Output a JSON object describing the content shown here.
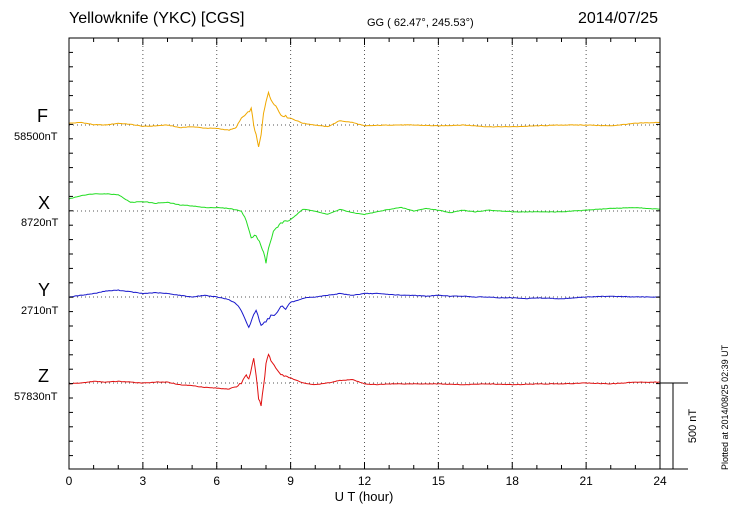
{
  "header": {
    "station": "Yellowknife (YKC)  [CGS]",
    "coords": "GG ( 62.47°, 245.53°)",
    "date": "2014/07/25"
  },
  "plotted_note": "Plotted at 2014/08/25 02:39 UT",
  "chart_data": {
    "type": "line",
    "xlabel": "U T (hour)",
    "xlim": [
      0,
      24
    ],
    "x_ticks": [
      "0",
      "3",
      "6",
      "9",
      "12",
      "15",
      "18",
      "21",
      "24"
    ],
    "scale_bar_label": "500 nT",
    "scale_bar_nT": 500,
    "series": [
      {
        "name": "F",
        "baseline": "58500nT",
        "color": "#f0a800",
        "points": [
          [
            0,
            10
          ],
          [
            0.5,
            15
          ],
          [
            1,
            2
          ],
          [
            1.5,
            0
          ],
          [
            2,
            10
          ],
          [
            2.5,
            4
          ],
          [
            3,
            -8
          ],
          [
            3.5,
            -5
          ],
          [
            4,
            0
          ],
          [
            4.5,
            -15
          ],
          [
            5,
            -10
          ],
          [
            5.5,
            -18
          ],
          [
            6,
            -20
          ],
          [
            6.5,
            -30
          ],
          [
            6.8,
            -15
          ],
          [
            7,
            40
          ],
          [
            7.2,
            60
          ],
          [
            7.4,
            95
          ],
          [
            7.5,
            0
          ],
          [
            7.6,
            -60
          ],
          [
            7.7,
            -130
          ],
          [
            7.8,
            -60
          ],
          [
            7.9,
            70
          ],
          [
            8,
            140
          ],
          [
            8.1,
            185
          ],
          [
            8.2,
            150
          ],
          [
            8.4,
            110
          ],
          [
            8.6,
            60
          ],
          [
            9,
            40
          ],
          [
            9.5,
            10
          ],
          [
            10,
            0
          ],
          [
            10.5,
            -10
          ],
          [
            11,
            25
          ],
          [
            11.5,
            15
          ],
          [
            12,
            -5
          ],
          [
            13,
            0
          ],
          [
            14,
            0
          ],
          [
            15,
            -5
          ],
          [
            16,
            0
          ],
          [
            17,
            -10
          ],
          [
            18,
            -10
          ],
          [
            19,
            -5
          ],
          [
            20,
            0
          ],
          [
            21,
            0
          ],
          [
            22,
            -5
          ],
          [
            23,
            10
          ],
          [
            24,
            15
          ]
        ]
      },
      {
        "name": "X",
        "baseline": "8720nT",
        "color": "#22dd22",
        "points": [
          [
            0,
            70
          ],
          [
            0.5,
            90
          ],
          [
            1,
            100
          ],
          [
            1.5,
            100
          ],
          [
            2,
            95
          ],
          [
            2.5,
            50
          ],
          [
            3,
            55
          ],
          [
            3.5,
            45
          ],
          [
            4,
            50
          ],
          [
            4.5,
            35
          ],
          [
            5,
            30
          ],
          [
            5.5,
            20
          ],
          [
            6,
            20
          ],
          [
            6.5,
            15
          ],
          [
            7,
            0
          ],
          [
            7.2,
            -60
          ],
          [
            7.4,
            -150
          ],
          [
            7.6,
            -140
          ],
          [
            7.8,
            -200
          ],
          [
            7.9,
            -240
          ],
          [
            8,
            -300
          ],
          [
            8.1,
            -220
          ],
          [
            8.3,
            -120
          ],
          [
            8.6,
            -70
          ],
          [
            9,
            -50
          ],
          [
            9.5,
            10
          ],
          [
            10,
            0
          ],
          [
            10.5,
            -20
          ],
          [
            11,
            10
          ],
          [
            11.5,
            -10
          ],
          [
            12,
            -20
          ],
          [
            12.5,
            -5
          ],
          [
            13,
            10
          ],
          [
            13.5,
            20
          ],
          [
            14,
            0
          ],
          [
            14.5,
            15
          ],
          [
            15,
            5
          ],
          [
            15.5,
            -10
          ],
          [
            16,
            5
          ],
          [
            16.5,
            -5
          ],
          [
            17,
            5
          ],
          [
            17.5,
            0
          ],
          [
            18,
            -5
          ],
          [
            19,
            -5
          ],
          [
            20,
            -5
          ],
          [
            21,
            5
          ],
          [
            22,
            15
          ],
          [
            23,
            20
          ],
          [
            24,
            10
          ]
        ]
      },
      {
        "name": "Y",
        "baseline": "2710nT",
        "color": "#1a1acc",
        "points": [
          [
            0,
            0
          ],
          [
            0.5,
            10
          ],
          [
            1,
            20
          ],
          [
            1.5,
            35
          ],
          [
            2,
            40
          ],
          [
            2.5,
            30
          ],
          [
            3,
            20
          ],
          [
            3.5,
            25
          ],
          [
            4,
            20
          ],
          [
            4.5,
            10
          ],
          [
            5,
            0
          ],
          [
            5.5,
            10
          ],
          [
            6,
            0
          ],
          [
            6.5,
            -15
          ],
          [
            6.8,
            -40
          ],
          [
            7,
            -80
          ],
          [
            7.2,
            -150
          ],
          [
            7.3,
            -180
          ],
          [
            7.5,
            -100
          ],
          [
            7.6,
            -80
          ],
          [
            7.8,
            -160
          ],
          [
            8,
            -140
          ],
          [
            8.2,
            -110
          ],
          [
            8.4,
            -100
          ],
          [
            8.6,
            -50
          ],
          [
            8.8,
            -70
          ],
          [
            9,
            -30
          ],
          [
            9.3,
            -20
          ],
          [
            9.6,
            -5
          ],
          [
            10,
            0
          ],
          [
            10.5,
            10
          ],
          [
            11,
            20
          ],
          [
            11.5,
            10
          ],
          [
            12,
            20
          ],
          [
            12.5,
            20
          ],
          [
            13,
            15
          ],
          [
            13.5,
            10
          ],
          [
            14,
            10
          ],
          [
            14.5,
            5
          ],
          [
            15,
            10
          ],
          [
            15.5,
            5
          ],
          [
            16,
            5
          ],
          [
            16.5,
            0
          ],
          [
            17,
            0
          ],
          [
            17.5,
            -5
          ],
          [
            18,
            -5
          ],
          [
            18.5,
            -10
          ],
          [
            19,
            -5
          ],
          [
            20,
            -10
          ],
          [
            21,
            0
          ],
          [
            22,
            5
          ],
          [
            23,
            0
          ],
          [
            24,
            0
          ]
        ]
      },
      {
        "name": "Z",
        "baseline": "57830nT",
        "color": "#e01010",
        "points": [
          [
            0,
            -5
          ],
          [
            0.5,
            0
          ],
          [
            1,
            10
          ],
          [
            1.5,
            5
          ],
          [
            2,
            10
          ],
          [
            2.5,
            5
          ],
          [
            3,
            0
          ],
          [
            3.5,
            5
          ],
          [
            4,
            5
          ],
          [
            4.5,
            -10
          ],
          [
            5,
            -15
          ],
          [
            5.5,
            -25
          ],
          [
            6,
            -30
          ],
          [
            6.5,
            -35
          ],
          [
            6.8,
            -20
          ],
          [
            7,
            0
          ],
          [
            7.2,
            50
          ],
          [
            7.3,
            20
          ],
          [
            7.5,
            140
          ],
          [
            7.6,
            40
          ],
          [
            7.7,
            -90
          ],
          [
            7.8,
            -130
          ],
          [
            7.9,
            -20
          ],
          [
            8,
            110
          ],
          [
            8.1,
            170
          ],
          [
            8.2,
            130
          ],
          [
            8.4,
            90
          ],
          [
            8.6,
            50
          ],
          [
            9,
            30
          ],
          [
            9.5,
            0
          ],
          [
            10,
            -10
          ],
          [
            10.5,
            0
          ],
          [
            11,
            15
          ],
          [
            11.5,
            20
          ],
          [
            12,
            -5
          ],
          [
            12.5,
            -10
          ],
          [
            13,
            -5
          ],
          [
            14,
            -5
          ],
          [
            15,
            -5
          ],
          [
            16,
            -10
          ],
          [
            17,
            -5
          ],
          [
            18,
            -10
          ],
          [
            19,
            -5
          ],
          [
            20,
            -5
          ],
          [
            21,
            0
          ],
          [
            22,
            -5
          ],
          [
            23,
            5
          ],
          [
            24,
            5
          ]
        ]
      }
    ]
  }
}
